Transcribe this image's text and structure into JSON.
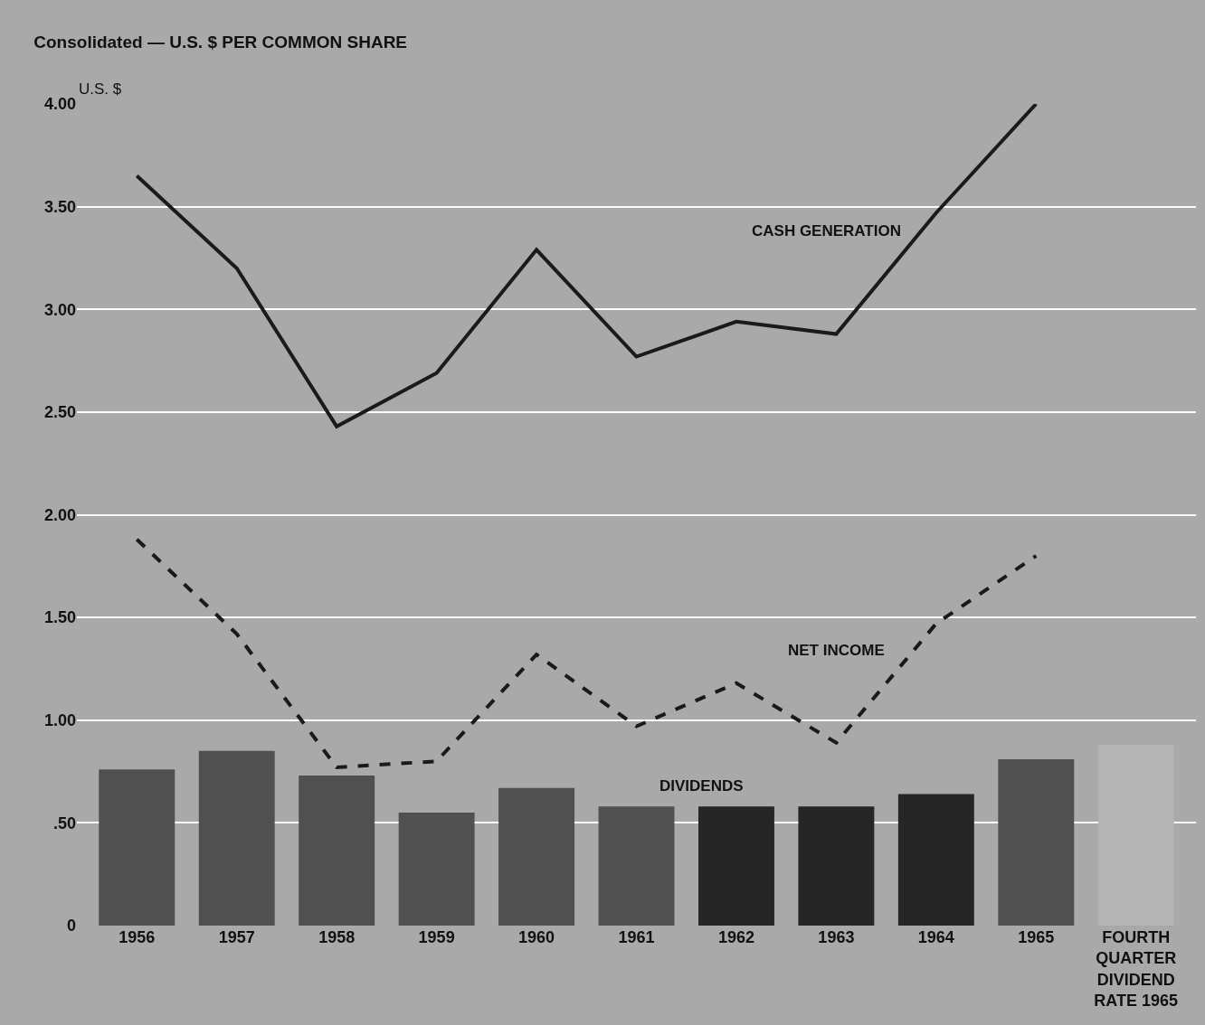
{
  "chart_data": {
    "type": "bar",
    "title": "Consolidated — U.S. $ PER COMMON SHARE",
    "ylabel": "U.S. $",
    "categories": [
      "1956",
      "1957",
      "1958",
      "1959",
      "1960",
      "1961",
      "1962",
      "1963",
      "1964",
      "1965",
      "FOURTH\nQUARTER\nDIVIDEND\nRATE 1965"
    ],
    "series": [
      {
        "name": "DIVIDENDS",
        "colors": [
          "#505050",
          "#505050",
          "#505050",
          "#505050",
          "#505050",
          "#505050",
          "#262626",
          "#262626",
          "#262626",
          "#505050",
          "#b4b4b4"
        ],
        "values": [
          0.76,
          0.85,
          0.73,
          0.55,
          0.67,
          0.58,
          0.58,
          0.58,
          0.64,
          0.81,
          0.88
        ]
      },
      {
        "name": "CASH GENERATION",
        "type": "line",
        "color": "#1a1a1a",
        "line_style": "solid",
        "values": [
          3.65,
          3.2,
          2.43,
          2.69,
          3.29,
          2.77,
          2.94,
          2.88,
          3.47,
          4.0,
          null
        ]
      },
      {
        "name": "NET INCOME",
        "type": "line",
        "color": "#1a1a1a",
        "line_style": "dashed",
        "values": [
          1.88,
          1.42,
          0.77,
          0.8,
          1.32,
          0.97,
          1.18,
          0.89,
          1.47,
          1.8,
          null
        ]
      }
    ],
    "ylim": [
      0,
      4
    ],
    "yticks": [
      {
        "value": 0,
        "label": "0"
      },
      {
        "value": 0.5,
        "label": ".50"
      },
      {
        "value": 1,
        "label": "1.00"
      },
      {
        "value": 1.5,
        "label": "1.50"
      },
      {
        "value": 2,
        "label": "2.00"
      },
      {
        "value": 2.5,
        "label": "2.50"
      },
      {
        "value": 3,
        "label": "3.00"
      },
      {
        "value": 3.5,
        "label": "3.50"
      },
      {
        "value": 4,
        "label": "4.00"
      }
    ],
    "grid": "y",
    "legend": false,
    "marker": "none"
  }
}
